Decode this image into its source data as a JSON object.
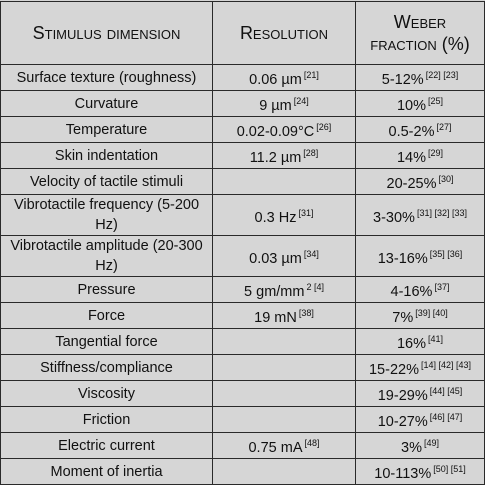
{
  "table": {
    "header": [
      "Stimulus dimension",
      "Resolution",
      "Weber fraction (%)"
    ],
    "rows": [
      [
        {
          "text": "Surface texture (roughness)"
        },
        {
          "text": "0.06 µm",
          "sup": "[21]"
        },
        {
          "text": "5-12%",
          "sup": "[22] [23]"
        }
      ],
      [
        {
          "text": "Curvature"
        },
        {
          "text": "9 µm",
          "sup": "[24]"
        },
        {
          "text": "10%",
          "sup": "[25]"
        }
      ],
      [
        {
          "text": "Temperature"
        },
        {
          "text": "0.02-0.09°C",
          "sup": "[26]"
        },
        {
          "text": "0.5-2%",
          "sup": "[27]"
        }
      ],
      [
        {
          "text": "Skin indentation"
        },
        {
          "text": "11.2 µm",
          "sup": "[28]"
        },
        {
          "text": "14%",
          "sup": "[29]"
        }
      ],
      [
        {
          "text": "Velocity of tactile stimuli"
        },
        null,
        {
          "text": "20-25%",
          "sup": "[30]"
        }
      ],
      [
        {
          "text": "Vibrotactile frequency (5-200 Hz)"
        },
        {
          "text": "0.3 Hz",
          "sup": "[31]"
        },
        {
          "text": "3-30%",
          "sup": "[31] [32] [33]"
        }
      ],
      [
        {
          "text": "Vibrotactile amplitude (20-300 Hz)"
        },
        {
          "text": "0.03 µm",
          "sup": "[34]"
        },
        {
          "text": "13-16%",
          "sup": "[35] [36]"
        }
      ],
      [
        {
          "text": "Pressure"
        },
        {
          "text": "5 gm/mm",
          "sup": "2 [4]"
        },
        {
          "text": "4-16%",
          "sup": "[37]"
        }
      ],
      [
        {
          "text": "Force"
        },
        {
          "text": "19 mN",
          "sup": "[38]"
        },
        {
          "text": "7%",
          "sup": "[39] [40]"
        }
      ],
      [
        {
          "text": "Tangential force"
        },
        null,
        {
          "text": "16%",
          "sup": "[41]"
        }
      ],
      [
        {
          "text": "Stiffness/compliance"
        },
        null,
        {
          "text": "15-22%",
          "sup": "[14] [42] [43]"
        }
      ],
      [
        {
          "text": "Viscosity"
        },
        null,
        {
          "text": "19-29%",
          "sup": "[44] [45]"
        }
      ],
      [
        {
          "text": "Friction"
        },
        null,
        {
          "text": "10-27%",
          "sup": "[46] [47]"
        }
      ],
      [
        {
          "text": "Electric current"
        },
        {
          "text": "0.75 mA",
          "sup": "[48]"
        },
        {
          "text": "3%",
          "sup": "[49]"
        }
      ],
      [
        {
          "text": "Moment of inertia"
        },
        null,
        {
          "text": "10-113%",
          "sup": "[50] [51]"
        }
      ]
    ]
  }
}
